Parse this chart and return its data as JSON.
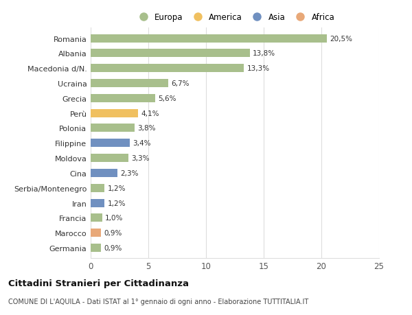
{
  "categories": [
    "Romania",
    "Albania",
    "Macedonia d/N.",
    "Ucraina",
    "Grecia",
    "Perù",
    "Polonia",
    "Filippine",
    "Moldova",
    "Cina",
    "Serbia/Montenegro",
    "Iran",
    "Francia",
    "Marocco",
    "Germania"
  ],
  "values": [
    20.5,
    13.8,
    13.3,
    6.7,
    5.6,
    4.1,
    3.8,
    3.4,
    3.3,
    2.3,
    1.2,
    1.2,
    1.0,
    0.9,
    0.9
  ],
  "labels": [
    "20,5%",
    "13,8%",
    "13,3%",
    "6,7%",
    "5,6%",
    "4,1%",
    "3,8%",
    "3,4%",
    "3,3%",
    "2,3%",
    "1,2%",
    "1,2%",
    "1,0%",
    "0,9%",
    "0,9%"
  ],
  "continents": [
    "Europa",
    "Europa",
    "Europa",
    "Europa",
    "Europa",
    "America",
    "Europa",
    "Asia",
    "Europa",
    "Asia",
    "Europa",
    "Asia",
    "Europa",
    "Africa",
    "Europa"
  ],
  "colors": {
    "Europa": "#a8bf8c",
    "America": "#f0c060",
    "Asia": "#7090c0",
    "Africa": "#e8a878"
  },
  "legend_order": [
    "Europa",
    "America",
    "Asia",
    "Africa"
  ],
  "title_main": "Cittadini Stranieri per Cittadinanza",
  "title_sub": "COMUNE DI L'AQUILA - Dati ISTAT al 1° gennaio di ogni anno - Elaborazione TUTTITALIA.IT",
  "xlim": [
    0,
    25
  ],
  "xticks": [
    0,
    5,
    10,
    15,
    20,
    25
  ],
  "bg_color": "#ffffff",
  "grid_color": "#dddddd"
}
